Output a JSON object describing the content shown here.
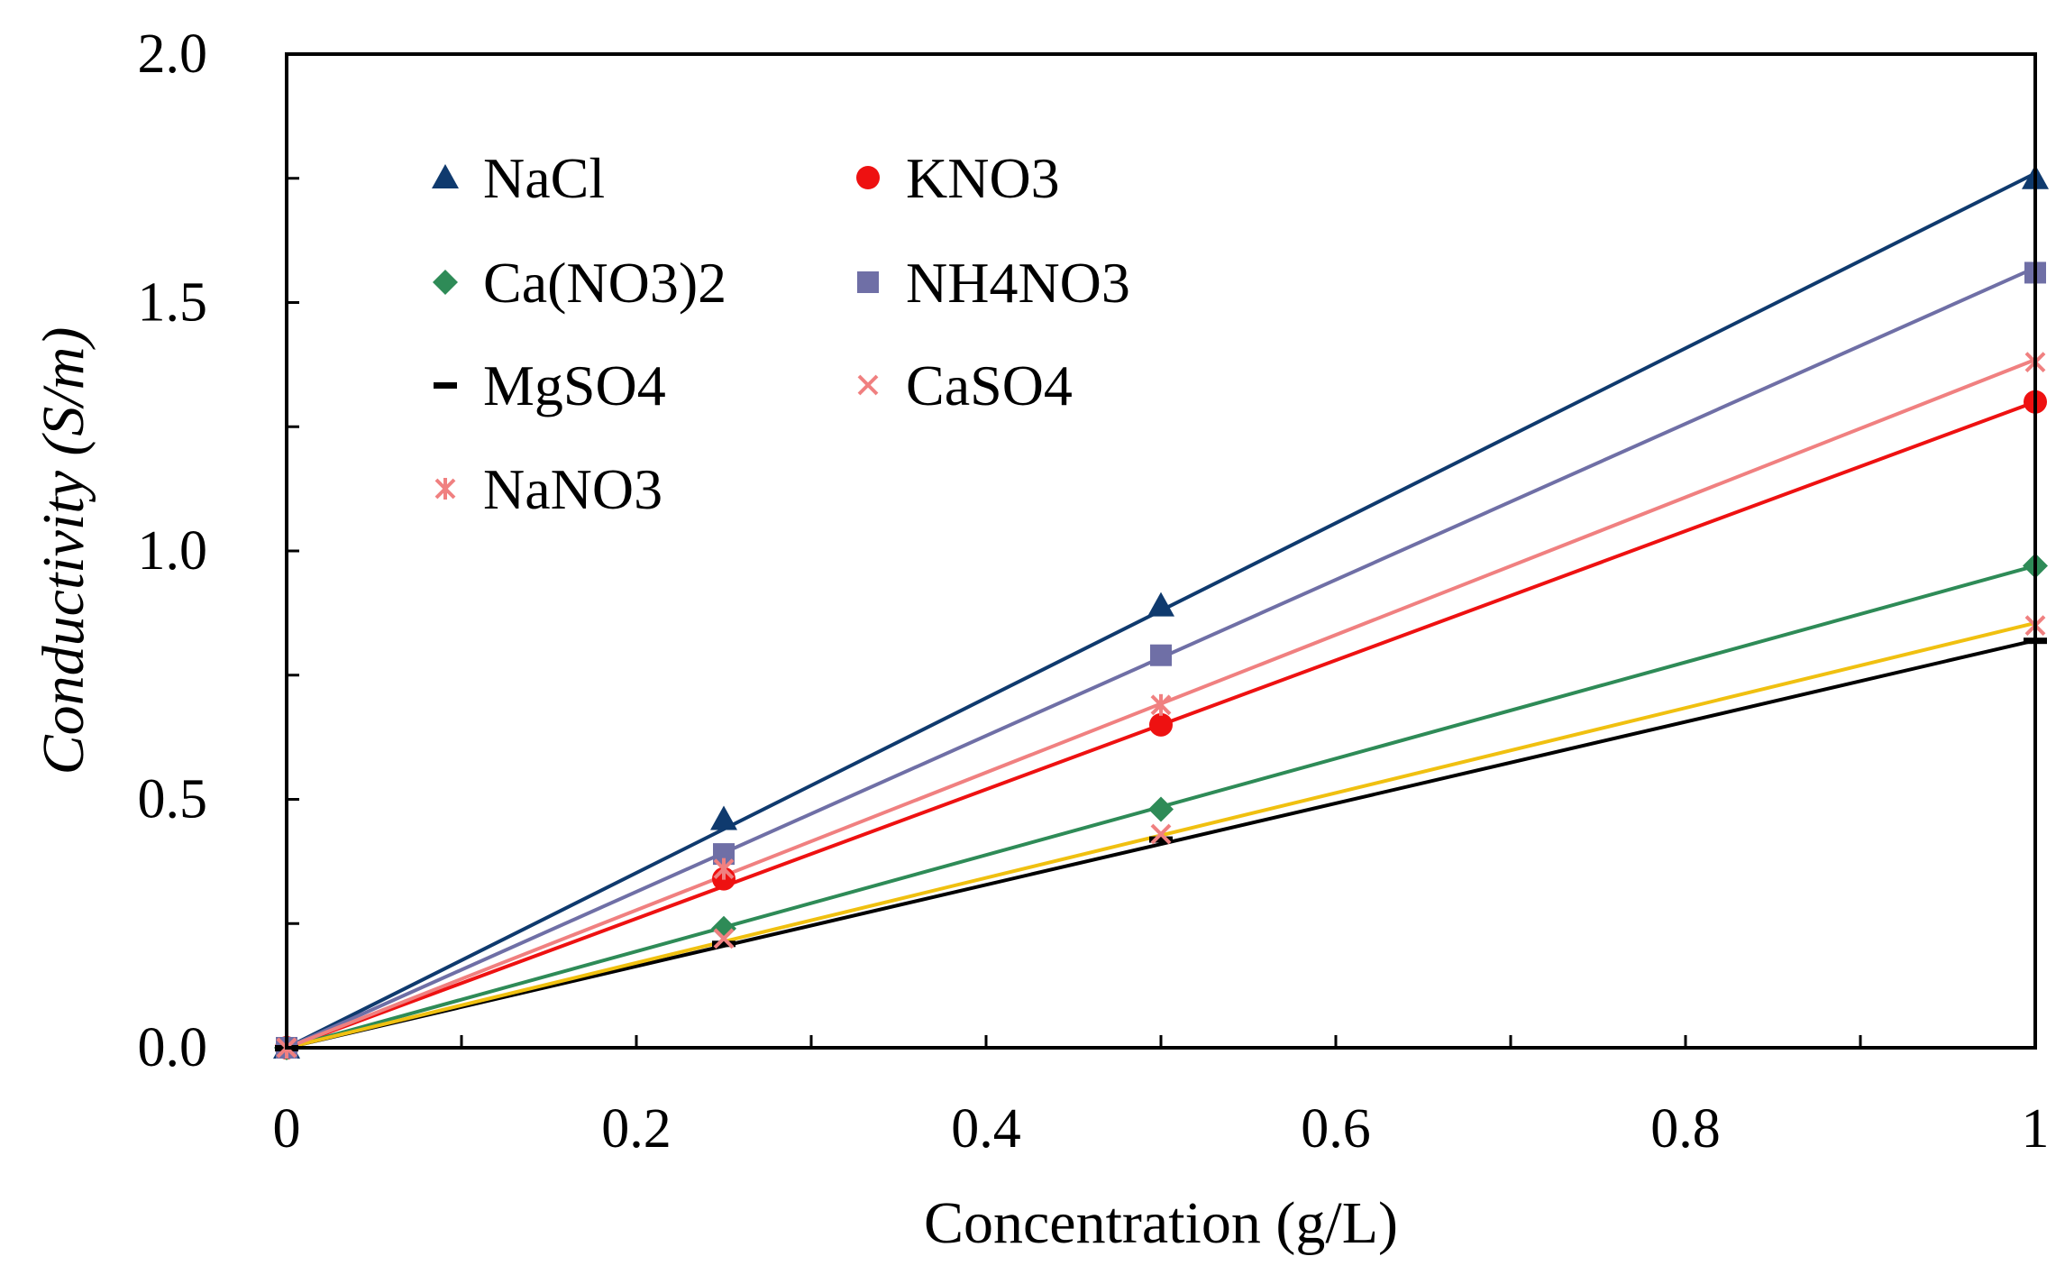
{
  "chart_data": {
    "type": "scatter",
    "title": "",
    "xlabel": "Concentration  (g/L)",
    "ylabel": "Conductivity (S/m)",
    "xlim": [
      0,
      1
    ],
    "ylim": [
      0,
      2.0
    ],
    "x_ticks": [
      0,
      0.2,
      0.4,
      0.6,
      0.8,
      1
    ],
    "x_tick_labels": [
      "0",
      "0.2",
      "0.4",
      "0.6",
      "0.8",
      "1"
    ],
    "y_ticks": [
      0,
      0.5,
      1.0,
      1.5,
      2.0
    ],
    "y_tick_labels": [
      "0.0",
      "0.5",
      "1.0",
      "1.5",
      "2.0"
    ],
    "grid": false,
    "legend_position": "top-left",
    "x": [
      0,
      0.25,
      0.5,
      1
    ],
    "series": [
      {
        "name": "NaCl",
        "marker": "triangle",
        "color": "#0f3a6e",
        "line_color": "#0f3a6e",
        "values": [
          0,
          0.46,
          0.89,
          1.75
        ],
        "fit_slope": 1.76
      },
      {
        "name": "KNO3",
        "marker": "circle",
        "color": "#ee1111",
        "line_color": "#ee1111",
        "values": [
          0,
          0.34,
          0.65,
          1.3
        ],
        "fit_slope": 1.3
      },
      {
        "name": "Ca(NO3)2",
        "marker": "diamond",
        "color": "#2e8b57",
        "line_color": "#2e8b57",
        "values": [
          0,
          0.24,
          0.48,
          0.97
        ],
        "fit_slope": 0.97
      },
      {
        "name": "NH4NO3",
        "marker": "square",
        "color": "#6f6fa6",
        "line_color": "#6f6fa6",
        "values": [
          0,
          0.39,
          0.79,
          1.56
        ],
        "fit_slope": 1.57
      },
      {
        "name": "MgSO4",
        "marker": "dash",
        "color": "#000000",
        "line_color": "#000000",
        "values": [
          0,
          0.21,
          0.42,
          0.82
        ],
        "fit_slope": 0.82
      },
      {
        "name": "CaSO4",
        "marker": "x",
        "color": "#f08080",
        "line_color": "#f0c010",
        "values": [
          0,
          0.22,
          0.43,
          0.85
        ],
        "fit_slope": 0.855
      },
      {
        "name": "NaNO3",
        "marker": "star",
        "color": "#f08080",
        "line_color": "#f08080",
        "values": [
          0,
          0.36,
          0.69,
          1.38
        ],
        "fit_slope": 1.385
      }
    ]
  }
}
